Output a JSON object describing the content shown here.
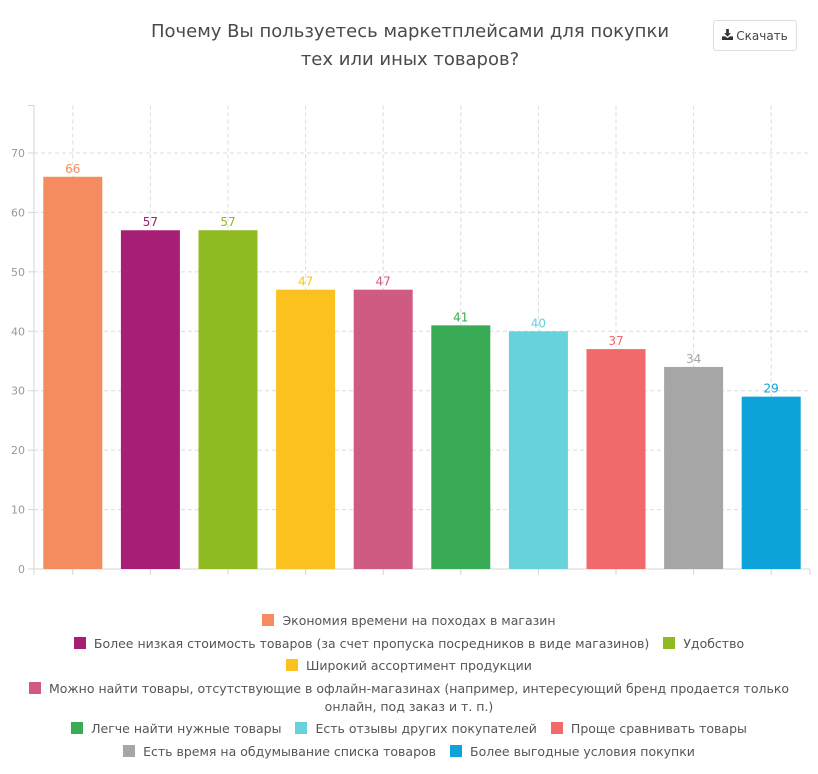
{
  "header": {
    "title_line1": "Почему Вы пользуетесь маркетплейсами для покупки",
    "title_line2": "тех или иных товаров?",
    "download_label": "Скачать",
    "download_icon": "download-icon"
  },
  "chart_data": {
    "type": "bar",
    "title": "Почему Вы пользуетесь маркетплейсами для покупки тех или иных товаров?",
    "xlabel": "",
    "ylabel": "",
    "ylim": [
      0,
      78
    ],
    "yticks": [
      0,
      10,
      20,
      30,
      40,
      50,
      60,
      70
    ],
    "grid": true,
    "legend_position": "bottom",
    "categories": [
      "Экономия времени на походах в магазин",
      "Более низкая стоимость товаров (за счет пропуска посредников в виде магазинов)",
      "Удобство",
      "Широкий ассортимент продукции",
      "Можно найти товары, отсутствующие в офлайн-магазинах (например, интересующий бренд продается только онлайн, под заказ и т. п.)",
      "Легче найти нужные товары",
      "Есть отзывы других покупателей",
      "Проще сравнивать товары",
      "Есть время на обдумывание списка товаров",
      "Более выгодные условия покупки"
    ],
    "values": [
      66,
      57,
      57,
      47,
      47,
      41,
      40,
      37,
      34,
      29
    ],
    "colors": [
      "#f58c5f",
      "#a61f74",
      "#8fba21",
      "#fbc21f",
      "#d05b82",
      "#3aab55",
      "#67d1dc",
      "#f2696b",
      "#a6a6a6",
      "#0ba3d8"
    ]
  },
  "legend_rows": [
    [
      0
    ],
    [
      1,
      2
    ],
    [
      3
    ],
    [
      4
    ],
    [
      5,
      6,
      7
    ],
    [
      8,
      9
    ]
  ]
}
